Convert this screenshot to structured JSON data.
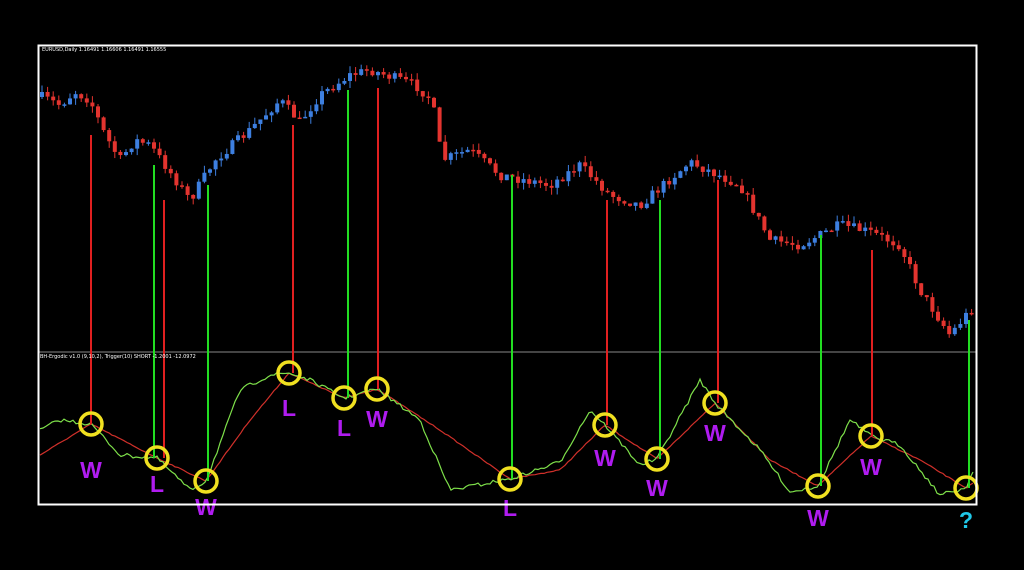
{
  "chart_header": "EURUSD,Daily 1.16491 1.16606 1.16491 1.16555",
  "indicator_header": "BH-Ergodic v1.0 (9,10,2), Trigger(10) SHORT -1.2001 -12.0972",
  "signals": [
    "W",
    "L",
    "W",
    "L",
    "L",
    "W",
    "L",
    "W",
    "W",
    "W",
    "W",
    "W",
    "?"
  ]
}
